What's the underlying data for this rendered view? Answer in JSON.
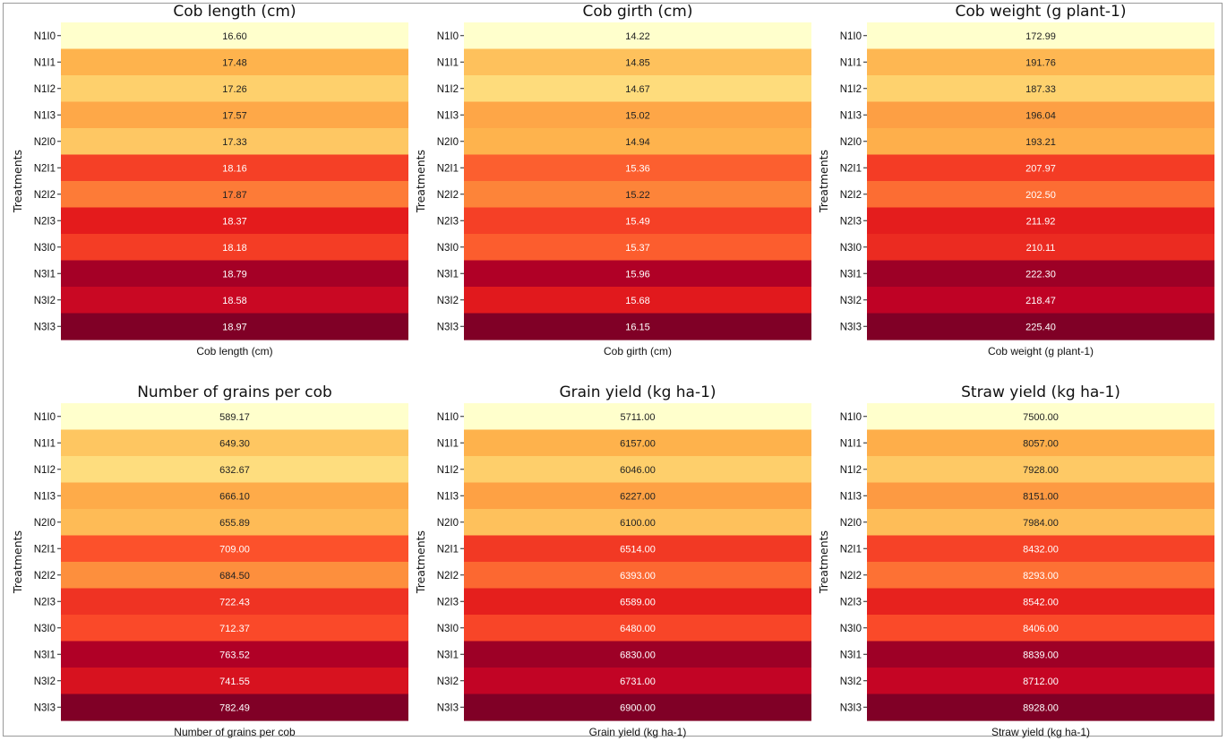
{
  "chart_data": [
    {
      "type": "heatmap",
      "title": "Cob length (cm)",
      "xlabel": "Cob length (cm)",
      "ylabel": "Treatments",
      "categories": [
        "N1I0",
        "N1I1",
        "N1I2",
        "N1I3",
        "N2I0",
        "N2I1",
        "N2I2",
        "N2I3",
        "N3I0",
        "N3I1",
        "N3I2",
        "N3I3"
      ],
      "values": [
        16.6,
        17.48,
        17.26,
        17.57,
        17.33,
        18.16,
        17.87,
        18.37,
        18.18,
        18.79,
        18.58,
        18.97
      ],
      "labels": [
        "16.60",
        "17.48",
        "17.26",
        "17.57",
        "17.33",
        "18.16",
        "17.87",
        "18.37",
        "18.18",
        "18.79",
        "18.58",
        "18.97"
      ],
      "colormap": "YlOrRd"
    },
    {
      "type": "heatmap",
      "title": "Cob girth (cm)",
      "xlabel": "Cob girth (cm)",
      "ylabel": "Treatments",
      "categories": [
        "N1I0",
        "N1I1",
        "N1I2",
        "N1I3",
        "N2I0",
        "N2I1",
        "N2I2",
        "N2I3",
        "N3I0",
        "N3I1",
        "N3I2",
        "N3I3"
      ],
      "values": [
        14.22,
        14.85,
        14.67,
        15.02,
        14.94,
        15.36,
        15.22,
        15.49,
        15.37,
        15.96,
        15.68,
        16.15
      ],
      "labels": [
        "14.22",
        "14.85",
        "14.67",
        "15.02",
        "14.94",
        "15.36",
        "15.22",
        "15.49",
        "15.37",
        "15.96",
        "15.68",
        "16.15"
      ],
      "colormap": "YlOrRd"
    },
    {
      "type": "heatmap",
      "title": "Cob weight (g plant-1)",
      "xlabel": "Cob weight (g plant-1)",
      "ylabel": "Treatments",
      "categories": [
        "N1I0",
        "N1I1",
        "N1I2",
        "N1I3",
        "N2I0",
        "N2I1",
        "N2I2",
        "N2I3",
        "N3I0",
        "N3I1",
        "N3I2",
        "N3I3"
      ],
      "values": [
        172.99,
        191.76,
        187.33,
        196.04,
        193.21,
        207.97,
        202.5,
        211.92,
        210.11,
        222.3,
        218.47,
        225.4
      ],
      "labels": [
        "172.99",
        "191.76",
        "187.33",
        "196.04",
        "193.21",
        "207.97",
        "202.50",
        "211.92",
        "210.11",
        "222.30",
        "218.47",
        "225.40"
      ],
      "colormap": "YlOrRd"
    },
    {
      "type": "heatmap",
      "title": "Number of grains per cob",
      "xlabel": "Number of grains per cob",
      "ylabel": "Treatments",
      "categories": [
        "N1I0",
        "N1I1",
        "N1I2",
        "N1I3",
        "N2I0",
        "N2I1",
        "N2I2",
        "N2I3",
        "N3I0",
        "N3I1",
        "N3I2",
        "N3I3"
      ],
      "values": [
        589.17,
        649.3,
        632.67,
        666.1,
        655.89,
        709.0,
        684.5,
        722.43,
        712.37,
        763.52,
        741.55,
        782.49
      ],
      "labels": [
        "589.17",
        "649.30",
        "632.67",
        "666.10",
        "655.89",
        "709.00",
        "684.50",
        "722.43",
        "712.37",
        "763.52",
        "741.55",
        "782.49"
      ],
      "colormap": "YlOrRd"
    },
    {
      "type": "heatmap",
      "title": "Grain yield (kg ha-1)",
      "xlabel": "Grain yield (kg ha-1)",
      "ylabel": "Treatments",
      "categories": [
        "N1I0",
        "N1I1",
        "N1I2",
        "N1I3",
        "N2I0",
        "N2I1",
        "N2I2",
        "N2I3",
        "N3I0",
        "N3I1",
        "N3I2",
        "N3I3"
      ],
      "values": [
        5711.0,
        6157.0,
        6046.0,
        6227.0,
        6100.0,
        6514.0,
        6393.0,
        6589.0,
        6480.0,
        6830.0,
        6731.0,
        6900.0
      ],
      "labels": [
        "5711.00",
        "6157.00",
        "6046.00",
        "6227.00",
        "6100.00",
        "6514.00",
        "6393.00",
        "6589.00",
        "6480.00",
        "6830.00",
        "6731.00",
        "6900.00"
      ],
      "colormap": "YlOrRd"
    },
    {
      "type": "heatmap",
      "title": "Straw yield (kg ha-1)",
      "xlabel": "Straw yield (kg ha-1)",
      "ylabel": "Treatments",
      "categories": [
        "N1I0",
        "N1I1",
        "N1I2",
        "N1I3",
        "N2I0",
        "N2I1",
        "N2I2",
        "N2I3",
        "N3I0",
        "N3I1",
        "N3I2",
        "N3I3"
      ],
      "values": [
        7500.0,
        8057.0,
        7928.0,
        8151.0,
        7984.0,
        8432.0,
        8293.0,
        8542.0,
        8406.0,
        8839.0,
        8712.0,
        8928.0
      ],
      "labels": [
        "7500.00",
        "8057.00",
        "7928.00",
        "8151.00",
        "7984.00",
        "8432.00",
        "8293.00",
        "8542.00",
        "8406.00",
        "8839.00",
        "8712.00",
        "8928.00"
      ],
      "colormap": "YlOrRd"
    }
  ]
}
